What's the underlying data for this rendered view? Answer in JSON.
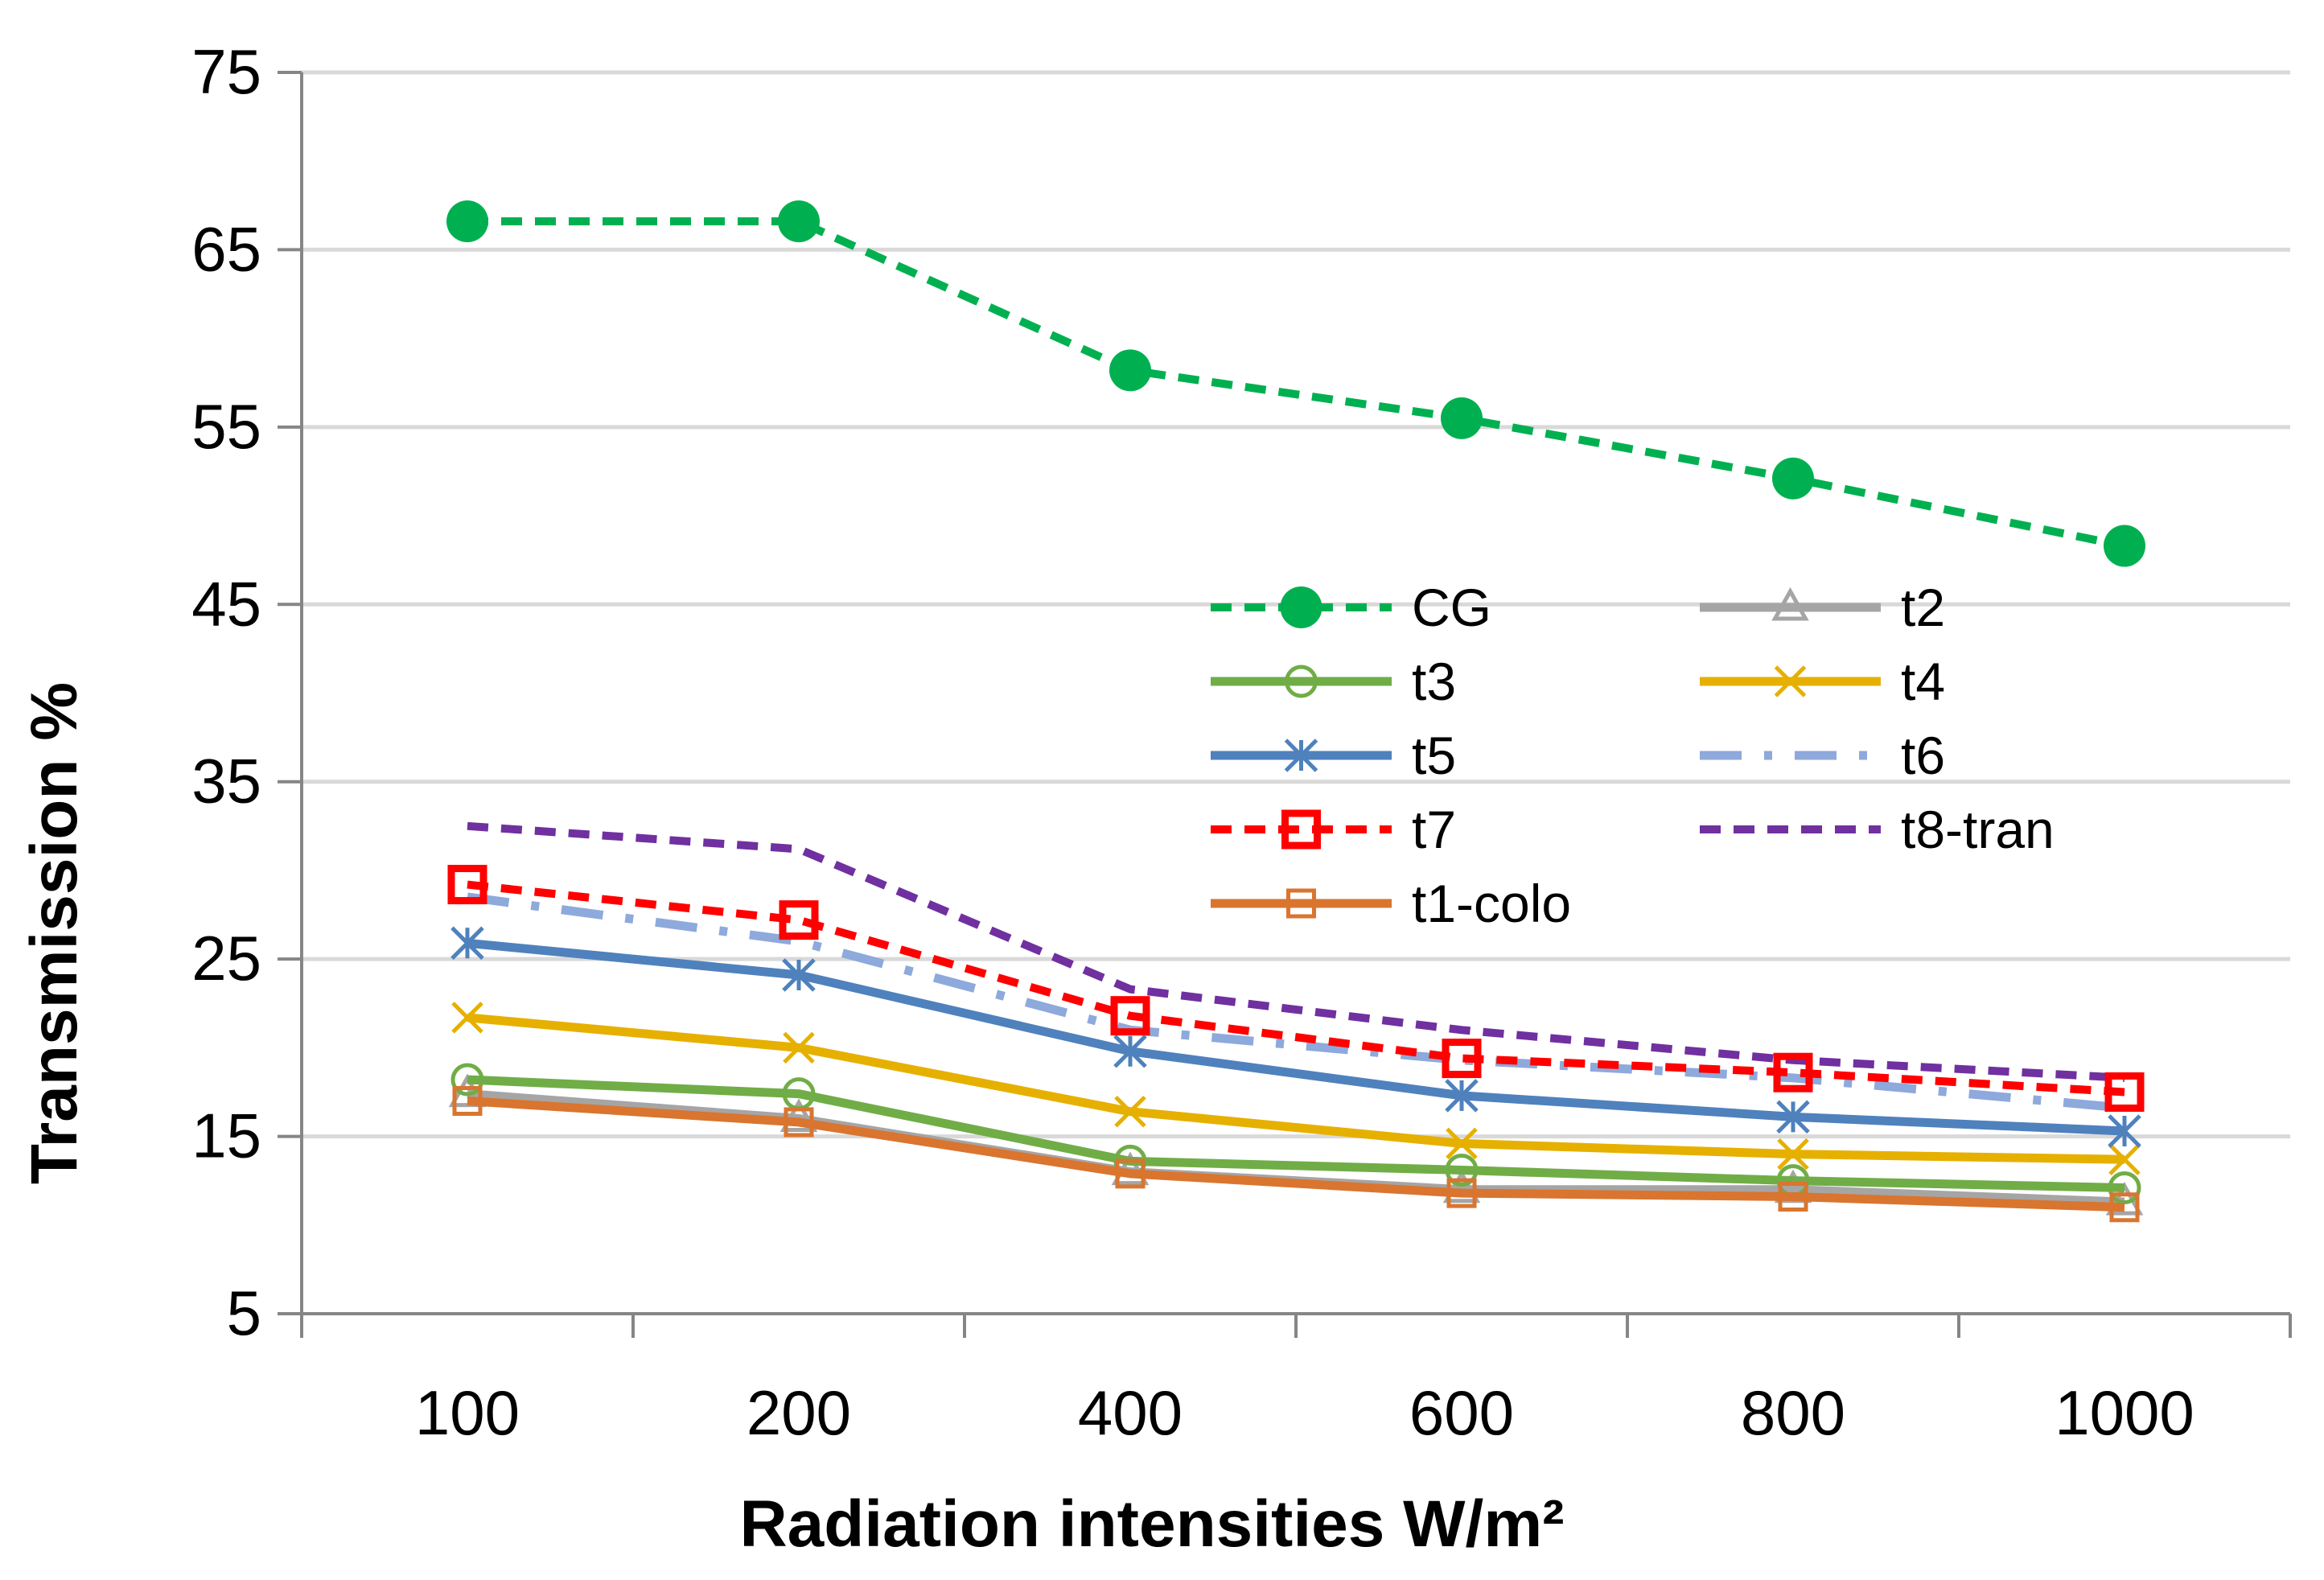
{
  "chart_data": {
    "type": "line",
    "title": "",
    "xlabel": "Radiation intensities W/m²",
    "ylabel": "Transmission  %",
    "categories": [
      "100",
      "200",
      "400",
      "600",
      "800",
      "1000"
    ],
    "ylim": [
      5,
      75
    ],
    "yticks": [
      "5",
      "15",
      "25",
      "35",
      "45",
      "55",
      "65",
      "75"
    ],
    "grid": "horizontal",
    "legend_placement": "center-right",
    "series": [
      {
        "name": "CG",
        "values": [
          66.6,
          66.6,
          58.2,
          55.5,
          52.1,
          48.3
        ],
        "color": "#00B050",
        "dash": "dashed",
        "marker": "filled-circle"
      },
      {
        "name": "t2",
        "values": [
          17.4,
          16.0,
          13.0,
          12.0,
          12.0,
          11.3
        ],
        "color": "#A5A5A5",
        "dash": "solid",
        "marker": "triangle"
      },
      {
        "name": "t3",
        "values": [
          18.2,
          17.4,
          13.6,
          13.1,
          12.5,
          12.1
        ],
        "color": "#70AD47",
        "dash": "solid",
        "marker": "open-circle"
      },
      {
        "name": "t4",
        "values": [
          21.7,
          20.0,
          16.4,
          14.6,
          14.0,
          13.7
        ],
        "color": "#E6B000",
        "dash": "solid",
        "marker": "x"
      },
      {
        "name": "t5",
        "values": [
          25.9,
          24.1,
          19.8,
          17.3,
          16.1,
          15.3
        ],
        "color": "#4F81BD",
        "dash": "solid",
        "marker": "asterisk"
      },
      {
        "name": "t6",
        "values": [
          28.5,
          26.0,
          21.0,
          19.3,
          18.3,
          16.6
        ],
        "color": "#8EA9DB",
        "dash": "dash-dot",
        "marker": "none"
      },
      {
        "name": "t7",
        "values": [
          29.2,
          27.2,
          21.8,
          19.4,
          18.6,
          17.5
        ],
        "color": "#FF0000",
        "dash": "dashed",
        "marker": "open-square"
      },
      {
        "name": "t8-tran",
        "values": [
          32.5,
          31.2,
          23.3,
          21.0,
          19.3,
          18.3
        ],
        "color": "#7030A0",
        "dash": "dashed",
        "marker": "none"
      },
      {
        "name": "t1-colo",
        "values": [
          17.0,
          15.8,
          12.9,
          11.8,
          11.6,
          11.0
        ],
        "color": "#D9752F",
        "dash": "solid",
        "marker": "open-square"
      }
    ]
  }
}
